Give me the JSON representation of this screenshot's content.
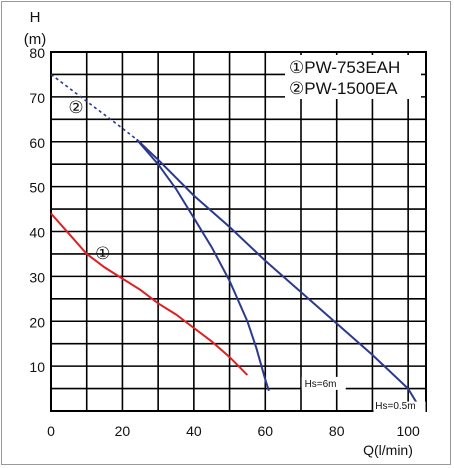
{
  "chart_data": {
    "type": "line",
    "ylabel_line1": "H",
    "ylabel_line2": "(m)",
    "xlabel": "Q(l/min)",
    "xlim": [
      0,
      105
    ],
    "ylim": [
      0,
      80
    ],
    "x_ticks": [
      0,
      20,
      40,
      60,
      80,
      100
    ],
    "y_ticks": [
      10,
      20,
      30,
      40,
      50,
      60,
      70,
      80
    ],
    "legend": {
      "position": "top-right",
      "entries": [
        "①PW-753EAH",
        "②PW-1500EA"
      ]
    },
    "series": [
      {
        "name": "①",
        "color": "#e02020",
        "points": [
          [
            0,
            44
          ],
          [
            5,
            39.5
          ],
          [
            10,
            35
          ],
          [
            15,
            32
          ],
          [
            20,
            29.5
          ],
          [
            25,
            27
          ],
          [
            30,
            24
          ],
          [
            35,
            21.5
          ],
          [
            40,
            18.5
          ],
          [
            45,
            15.5
          ],
          [
            50,
            12
          ],
          [
            55,
            8
          ]
        ]
      },
      {
        "name": "②",
        "color": "#2b3a8f",
        "dashed_points": [
          [
            0,
            75
          ],
          [
            5,
            72
          ],
          [
            10,
            69
          ],
          [
            15,
            66
          ],
          [
            20,
            63
          ],
          [
            24,
            60.5
          ]
        ],
        "branches": [
          {
            "annotation": "Hs=6m",
            "points": [
              [
                24,
                60.5
              ],
              [
                30,
                55
              ],
              [
                35,
                49.5
              ],
              [
                40,
                43
              ],
              [
                45,
                36.5
              ],
              [
                50,
                29
              ],
              [
                55,
                20
              ],
              [
                57.5,
                14
              ],
              [
                60,
                7
              ],
              [
                61,
                4.5
              ]
            ]
          },
          {
            "annotation": "Hs=0.5m",
            "points": [
              [
                24,
                60.5
              ],
              [
                30,
                56
              ],
              [
                40,
                48
              ],
              [
                50,
                41
              ],
              [
                60,
                33.5
              ],
              [
                70,
                26.5
              ],
              [
                80,
                19.5
              ],
              [
                90,
                12.5
              ],
              [
                100,
                5
              ],
              [
                103,
                1
              ]
            ]
          }
        ]
      }
    ]
  }
}
